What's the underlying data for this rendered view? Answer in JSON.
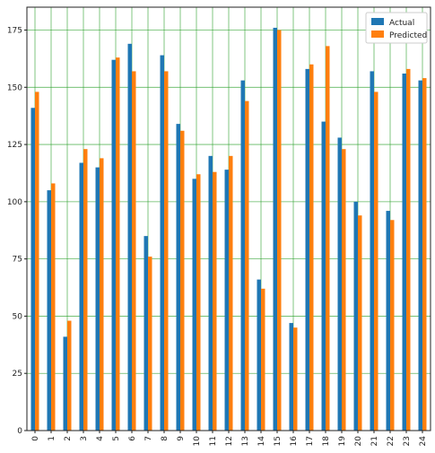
{
  "chart_data": {
    "type": "bar",
    "categories": [
      "0",
      "1",
      "2",
      "3",
      "4",
      "5",
      "6",
      "7",
      "8",
      "9",
      "10",
      "11",
      "12",
      "13",
      "14",
      "15",
      "16",
      "17",
      "18",
      "19",
      "20",
      "21",
      "22",
      "23",
      "24"
    ],
    "series": [
      {
        "name": "Actual",
        "color": "#1f77b4",
        "values": [
          141,
          105,
          41,
          117,
          115,
          162,
          169,
          85,
          164,
          134,
          110,
          120,
          114,
          153,
          66,
          176,
          47,
          158,
          135,
          128,
          100,
          157,
          96,
          156,
          153
        ]
      },
      {
        "name": "Predicted",
        "color": "#ff7f0e",
        "values": [
          148,
          108,
          48,
          123,
          119,
          163,
          157,
          76,
          157,
          131,
          112,
          113,
          120,
          144,
          62,
          175,
          45,
          160,
          168,
          123,
          94,
          148,
          92,
          158,
          154
        ]
      }
    ],
    "yticks": [
      0,
      25,
      50,
      75,
      100,
      125,
      150,
      175
    ],
    "ylim": [
      0,
      185
    ],
    "grid": true,
    "grid_color": "#2ca02c",
    "legend_position": "top-right",
    "title": "",
    "xlabel": "",
    "ylabel": ""
  }
}
